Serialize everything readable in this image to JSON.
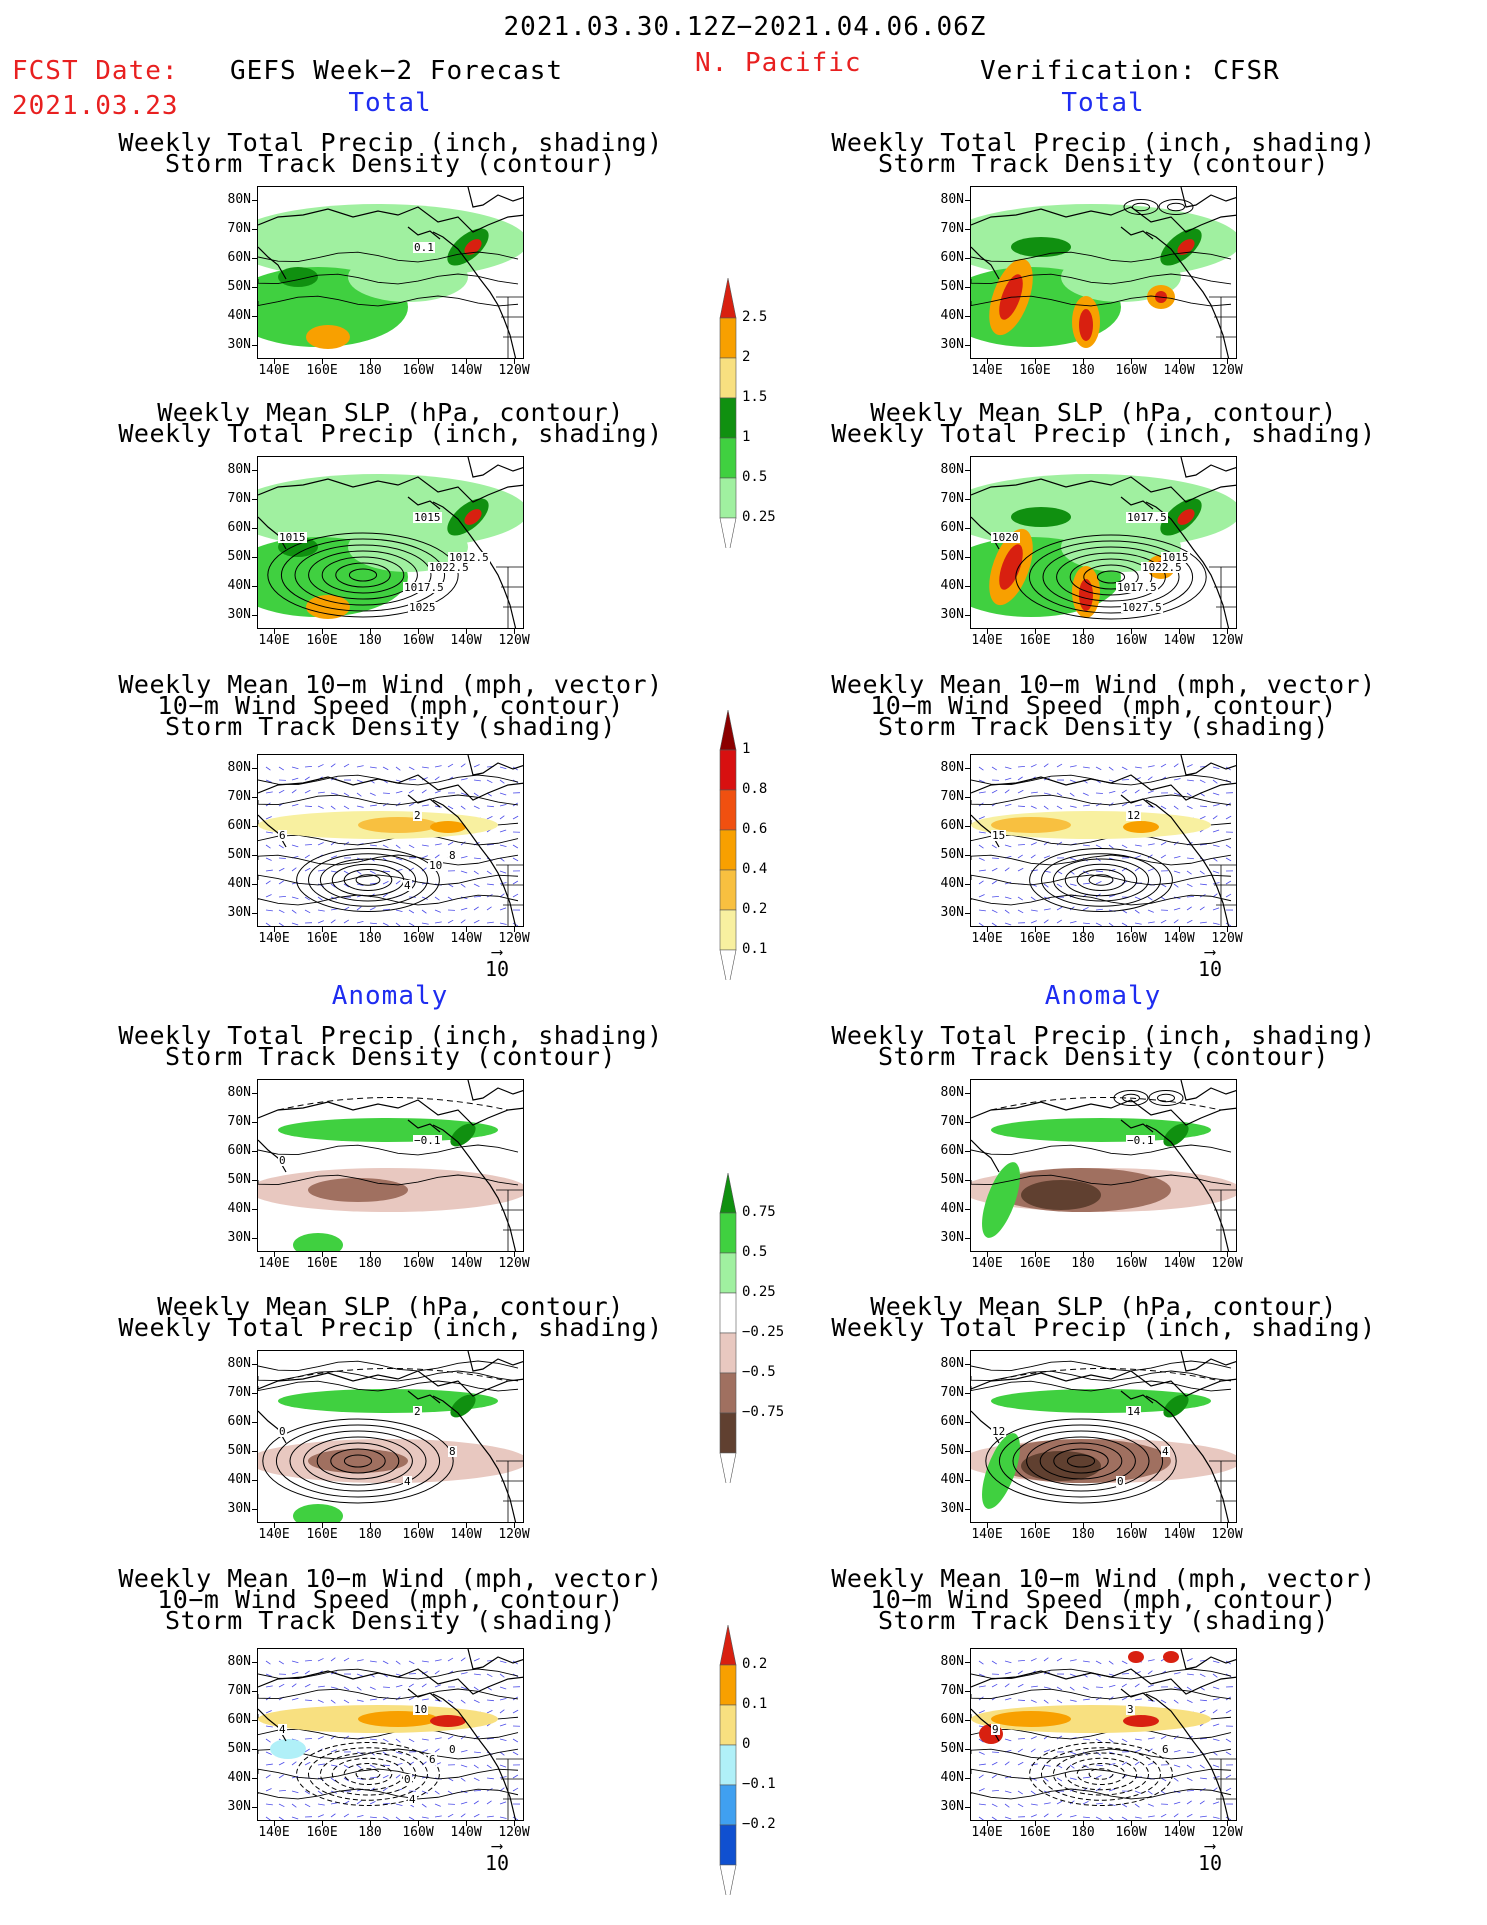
{
  "header": {
    "date_range": "2021.03.30.12Z−2021.04.06.06Z",
    "fcst_label": "FCST Date:",
    "fcst_date": "2021.03.23",
    "left_title": "GEFS Week−2 Forecast",
    "region": "N. Pacific",
    "right_title": "Verification: CFSR"
  },
  "sections": {
    "total": "Total",
    "anomaly": "Anomaly"
  },
  "panel_titles": {
    "precip_track": [
      "Weekly Total Precip (inch, shading)",
      "Storm Track Density (contour)"
    ],
    "slp_precip": [
      "Weekly Mean SLP (hPa, contour)",
      "Weekly Total Precip (inch, shading)"
    ],
    "wind_track": [
      "Weekly Mean 10−m Wind (mph, vector)",
      "10−m Wind Speed (mph, contour)",
      "Storm Track Density (shading)"
    ]
  },
  "axes": {
    "lat_labels": [
      "80N",
      "70N",
      "60N",
      "50N",
      "40N",
      "30N"
    ],
    "lon_labels": [
      "140E",
      "160E",
      "180",
      "160W",
      "140W",
      "120W"
    ]
  },
  "vector_reference": "10",
  "colorbars": {
    "precip_total": {
      "labels": [
        "2.5",
        "2",
        "1.5",
        "1",
        "0.5",
        "0.25"
      ],
      "colors": [
        "#d82010",
        "#f8a000",
        "#f8e080",
        "#109010",
        "#40d040",
        "#a0f0a0"
      ]
    },
    "track_total": {
      "labels": [
        "1",
        "0.8",
        "0.6",
        "0.4",
        "0.2",
        "0.1"
      ],
      "colors": [
        "#8b0000",
        "#d81010",
        "#f05010",
        "#f8a000",
        "#f8c040",
        "#f8f0a0"
      ]
    },
    "precip_anom": {
      "labels": [
        "0.75",
        "0.5",
        "0.25",
        "−0.25",
        "−0.5",
        "−0.75"
      ],
      "colors": [
        "#109010",
        "#40d040",
        "#a0f0a0",
        "#ffffff",
        "#e8c8c0",
        "#a07060",
        "#604030"
      ]
    },
    "track_anom": {
      "labels": [
        "0.2",
        "0.1",
        "0",
        "−0.1",
        "−0.2"
      ],
      "colors": [
        "#d82010",
        "#f8a000",
        "#f8e080",
        "#b0f0f8",
        "#40a0f0",
        "#1050d0"
      ]
    }
  },
  "contour_labels": {
    "gefs_precip_total": [
      "0.1"
    ],
    "gefs_slp_total": [
      "1015",
      "1015",
      "1012.5",
      "1017.5",
      "1022.5",
      "1025"
    ],
    "cfsr_slp_total": [
      "1017.5",
      "1020",
      "1015",
      "1017.5",
      "1022.5",
      "1027.5"
    ],
    "gefs_wind_total": [
      "2",
      "6",
      "8",
      "4",
      "10"
    ],
    "cfsr_wind_total": [
      "12",
      "15"
    ],
    "gefs_precip_anom": [
      "−0.1",
      "0"
    ],
    "cfsr_precip_anom": [
      "−0.1"
    ],
    "gefs_slp_anom": [
      "2",
      "0",
      "8",
      "4"
    ],
    "cfsr_slp_anom": [
      "14",
      "12",
      "4",
      "0"
    ],
    "gefs_wind_anom": [
      "10",
      "4",
      "0",
      "0",
      "6",
      "4"
    ],
    "cfsr_wind_anom": [
      "3",
      "9",
      "6"
    ]
  }
}
